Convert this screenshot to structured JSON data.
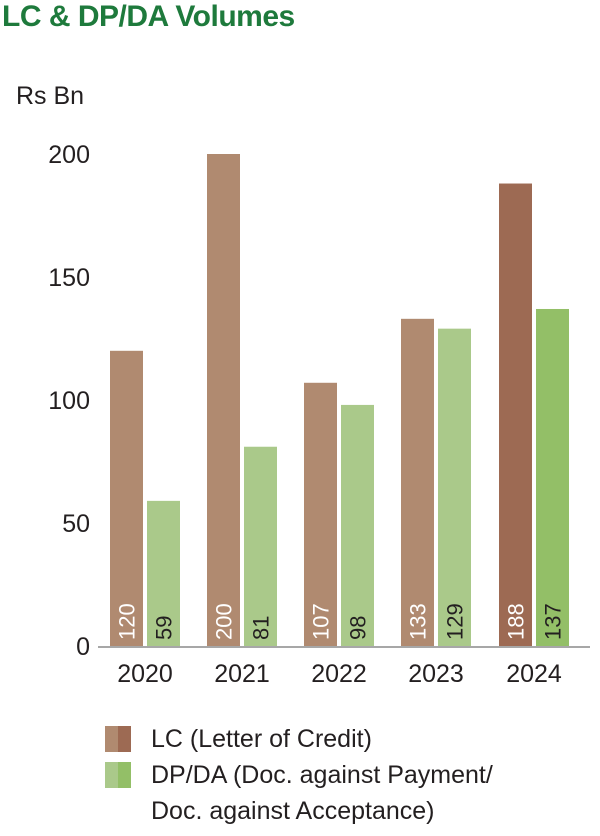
{
  "title": "LC & DP/DA Volumes",
  "unit": "Rs Bn",
  "colors": {
    "lc": "#b08a70",
    "lc_highlight": "#9d6a53",
    "dpda": "#aac98a",
    "dpda_highlight": "#93bf67",
    "title": "#1e7a3c"
  },
  "legend": {
    "lc": "LC (Letter of Credit)",
    "dpda_line1": "DP/DA (Doc. against Payment/",
    "dpda_line2": "Doc. against Acceptance)"
  },
  "chart_data": {
    "type": "bar",
    "categories": [
      "2020",
      "2021",
      "2022",
      "2023",
      "2024"
    ],
    "series": [
      {
        "name": "LC (Letter of Credit)",
        "values": [
          120,
          200,
          107,
          133,
          188
        ]
      },
      {
        "name": "DP/DA (Doc. against Payment/Doc. against Acceptance)",
        "values": [
          59,
          81,
          98,
          129,
          137
        ]
      }
    ],
    "data_labels": [
      [
        "120",
        "200",
        "107",
        "133",
        "188"
      ],
      [
        "59",
        "81",
        "98",
        "129",
        "137"
      ]
    ],
    "yticks": [
      "0",
      "50",
      "100",
      "150",
      "200"
    ],
    "ylim": [
      0,
      200
    ],
    "ylabel": "Rs Bn",
    "grid": false,
    "highlight_category": "2024",
    "legend_position": "bottom"
  }
}
